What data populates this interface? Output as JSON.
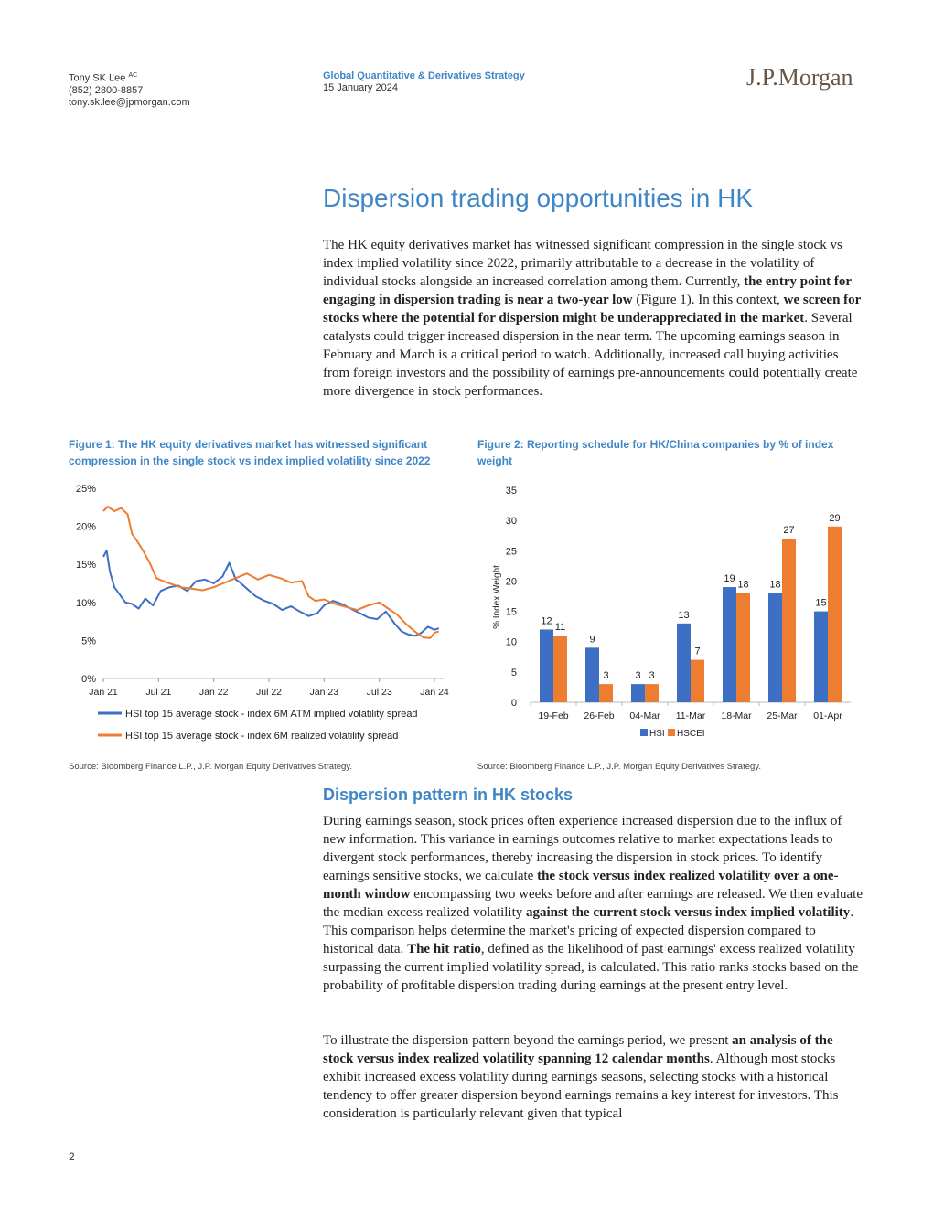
{
  "header": {
    "author_name": "Tony SK Lee",
    "author_sup": "AC",
    "author_phone": "(852) 2800-8857",
    "author_email": "tony.sk.lee@jpmorgan.com",
    "strategy": "Global Quantitative & Derivatives Strategy",
    "date": "15 January 2024",
    "logo": "J.P.Morgan"
  },
  "title": "Dispersion trading opportunities in HK",
  "intro": {
    "t1": "The HK equity derivatives market has witnessed significant compression in the single stock vs index implied volatility since 2022, primarily attributable to a decrease in the volatility of individual stocks alongside an increased correlation among them. Currently, ",
    "b1": "the entry point for engaging in dispersion trading is near a two-year low",
    "t2": " (Figure 1). In this context, ",
    "b2": "we screen for stocks where the potential for dispersion might be underappreciated in the market",
    "t3": ". Several catalysts could trigger increased dispersion in the near term. The upcoming earnings season in February and March is a critical period to watch. Additionally, increased call buying activities from foreign investors and the possibility of earnings pre-announcements could potentially create more divergence in stock performances."
  },
  "figure1": {
    "caption": "Figure 1: The HK equity derivatives market has witnessed significant compression in the single stock vs index implied volatility since 2022",
    "source": "Source: Bloomberg Finance L.P., J.P. Morgan Equity Derivatives Strategy."
  },
  "figure2": {
    "caption": "Figure 2: Reporting schedule for HK/China companies by % of index weight",
    "source": "Source: Bloomberg Finance L.P., J.P. Morgan Equity Derivatives Strategy."
  },
  "section_title": "Dispersion pattern in HK stocks",
  "para2": {
    "t1": "During earnings season, stock prices often experience increased dispersion due to the influx of new information. This variance in earnings outcomes relative to market expectations leads to divergent stock performances, thereby increasing the dispersion in stock prices. To identify earnings sensitive stocks, we calculate ",
    "b1": "the stock versus index realized volatility over a one-month window",
    "t2": " encompassing two weeks before and after earnings are released. We then evaluate the median excess realized volatility ",
    "b2": "against the current stock versus index implied volatility",
    "t3": ". This comparison helps determine the market's pricing of expected dispersion compared to historical data. ",
    "b3": "The hit ratio",
    "t4": ", defined as the likelihood of past earnings' excess realized volatility surpassing the current implied volatility spread, is calculated. This ratio ranks stocks based on the probability of profitable dispersion trading during earnings at the present entry level."
  },
  "para3": {
    "t1": "To illustrate the dispersion pattern beyond the earnings period, we present ",
    "b1": "an analysis of the stock versus index realized volatility spanning 12 calendar months",
    "t2": ". Although most stocks exhibit increased excess volatility during earnings seasons, selecting stocks with a historical tendency to offer greater dispersion beyond earnings remains a key interest for investors. This consideration is particularly relevant given that typical"
  },
  "page_number": "2",
  "chart_data": [
    {
      "type": "line",
      "ylim": [
        0,
        25
      ],
      "y_ticks": [
        "0%",
        "5%",
        "10%",
        "15%",
        "20%",
        "25%"
      ],
      "x_ticks": [
        "Jan 21",
        "Jul 21",
        "Jan 22",
        "Jul 22",
        "Jan 23",
        "Jul 23",
        "Jan 24"
      ],
      "x_tick_values": [
        2021.0,
        2021.5,
        2022.0,
        2022.5,
        2023.0,
        2023.5,
        2024.0
      ],
      "legend_position": "bottom",
      "series": [
        {
          "name": "HSI top 15 average stock - index 6M ATM implied volatility spread",
          "color": "#3d6fc4",
          "x": [
            2021.0,
            2021.03,
            2021.06,
            2021.1,
            2021.14,
            2021.2,
            2021.26,
            2021.32,
            2021.38,
            2021.45,
            2021.52,
            2021.6,
            2021.68,
            2021.76,
            2021.84,
            2021.92,
            2022.0,
            2022.08,
            2022.14,
            2022.2,
            2022.24,
            2022.3,
            2022.38,
            2022.46,
            2022.54,
            2022.62,
            2022.7,
            2022.78,
            2022.86,
            2022.94,
            2023.0,
            2023.08,
            2023.16,
            2023.24,
            2023.32,
            2023.4,
            2023.48,
            2023.56,
            2023.64,
            2023.7,
            2023.76,
            2023.82,
            2023.88,
            2023.94,
            2024.0,
            2024.04
          ],
          "values": [
            16.0,
            16.8,
            14.0,
            12.0,
            11.2,
            10.0,
            9.8,
            9.2,
            10.5,
            9.6,
            11.5,
            12.0,
            12.2,
            11.5,
            12.8,
            13.0,
            12.5,
            13.4,
            15.2,
            13.0,
            12.6,
            11.8,
            10.8,
            10.2,
            9.8,
            9.0,
            9.5,
            8.8,
            8.2,
            8.6,
            9.6,
            10.2,
            9.8,
            9.2,
            8.6,
            8.0,
            7.8,
            8.8,
            7.2,
            6.2,
            5.8,
            5.6,
            6.0,
            6.8,
            6.4,
            6.6
          ]
        },
        {
          "name": "HSI top 15 average stock - index 6M realized volatility spread",
          "color": "#ed7d31",
          "x": [
            2021.0,
            2021.04,
            2021.1,
            2021.16,
            2021.22,
            2021.26,
            2021.3,
            2021.36,
            2021.42,
            2021.48,
            2021.54,
            2021.62,
            2021.7,
            2021.8,
            2021.9,
            2022.0,
            2022.1,
            2022.2,
            2022.3,
            2022.4,
            2022.5,
            2022.6,
            2022.7,
            2022.8,
            2022.86,
            2022.92,
            2023.0,
            2023.1,
            2023.2,
            2023.3,
            2023.4,
            2023.5,
            2023.58,
            2023.66,
            2023.74,
            2023.82,
            2023.9,
            2023.96,
            2024.0,
            2024.04
          ],
          "values": [
            22.0,
            22.6,
            22.0,
            22.4,
            21.6,
            19.0,
            18.2,
            16.8,
            15.2,
            13.2,
            12.8,
            12.4,
            12.0,
            11.8,
            11.6,
            12.0,
            12.6,
            13.2,
            13.8,
            13.0,
            13.6,
            13.2,
            12.6,
            12.8,
            10.8,
            10.2,
            10.4,
            9.8,
            9.4,
            9.0,
            9.6,
            10.0,
            9.2,
            8.4,
            7.2,
            6.2,
            5.4,
            5.3,
            6.0,
            6.2
          ]
        }
      ]
    },
    {
      "type": "bar",
      "categories": [
        "19-Feb",
        "26-Feb",
        "04-Mar",
        "11-Mar",
        "18-Mar",
        "25-Mar",
        "01-Apr"
      ],
      "ylabel": "% Index Weight",
      "ylim": [
        0,
        35
      ],
      "y_ticks": [
        "0",
        "5",
        "10",
        "15",
        "20",
        "25",
        "30",
        "35"
      ],
      "legend_position": "bottom",
      "series": [
        {
          "name": "HSI",
          "color": "#3d6fc4",
          "values": [
            12,
            9,
            3,
            13,
            19,
            18,
            15
          ]
        },
        {
          "name": "HSCEI",
          "color": "#ed7d31",
          "values": [
            11,
            3,
            3,
            7,
            18,
            27,
            29
          ]
        }
      ]
    }
  ]
}
